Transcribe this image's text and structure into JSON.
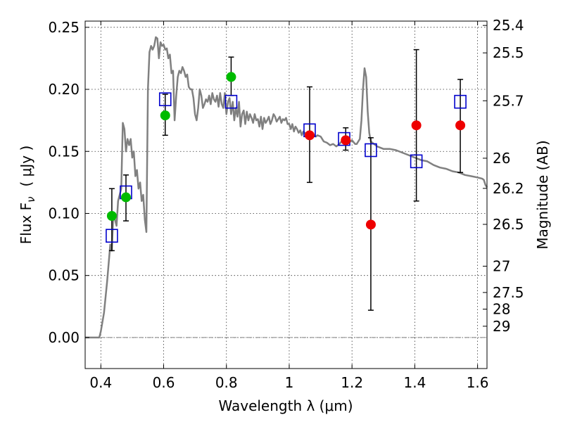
{
  "chart_data": {
    "type": "scatter",
    "xlabel": "Wavelength  λ (μm)",
    "ylabel": "Flux  F",
    "ylabel_sub": "ν",
    "ylabel_unit": "( μJy )",
    "ylabel_right": "Magnitude (AB)",
    "xlim": [
      0.35,
      1.63
    ],
    "ylim": [
      -0.025,
      0.255
    ],
    "xticks": [
      0.4,
      0.6,
      0.8,
      1.0,
      1.2,
      1.4,
      1.6
    ],
    "xtick_labels": [
      "0.4",
      "0.6",
      "0.8",
      "1",
      "1.2",
      "1.4",
      "1.6"
    ],
    "yticks": [
      0.0,
      0.05,
      0.1,
      0.15,
      0.2,
      0.25
    ],
    "ytick_labels": [
      "0.00",
      "0.05",
      "0.10",
      "0.15",
      "0.20",
      "0.25"
    ],
    "right_ticks": [
      {
        "mag": "25.4",
        "flux": 0.2515
      },
      {
        "mag": "25.5",
        "flux": 0.2294
      },
      {
        "mag": "25.7",
        "flux": 0.1908
      },
      {
        "mag": "26",
        "flux": 0.1445
      },
      {
        "mag": "26.2",
        "flux": 0.1202
      },
      {
        "mag": "26.5",
        "flux": 0.0912
      },
      {
        "mag": "27",
        "flux": 0.0575
      },
      {
        "mag": "27.5",
        "flux": 0.0363
      },
      {
        "mag": "28",
        "flux": 0.0229
      },
      {
        "mag": "29",
        "flux": 0.0091
      }
    ],
    "dotted_line": 0.0,
    "series": [
      {
        "name": "model spectrum",
        "kind": "line",
        "color": "#808080",
        "points": [
          [
            0.35,
            0.0
          ],
          [
            0.395,
            0.0
          ],
          [
            0.4,
            0.005
          ],
          [
            0.41,
            0.02
          ],
          [
            0.42,
            0.045
          ],
          [
            0.43,
            0.075
          ],
          [
            0.435,
            0.07
          ],
          [
            0.44,
            0.1
          ],
          [
            0.45,
            0.09
          ],
          [
            0.455,
            0.11
          ],
          [
            0.465,
            0.12
          ],
          [
            0.47,
            0.173
          ],
          [
            0.475,
            0.168
          ],
          [
            0.48,
            0.15
          ],
          [
            0.485,
            0.16
          ],
          [
            0.49,
            0.155
          ],
          [
            0.495,
            0.16
          ],
          [
            0.5,
            0.145
          ],
          [
            0.505,
            0.15
          ],
          [
            0.51,
            0.13
          ],
          [
            0.515,
            0.135
          ],
          [
            0.52,
            0.12
          ],
          [
            0.525,
            0.125
          ],
          [
            0.53,
            0.11
          ],
          [
            0.535,
            0.115
          ],
          [
            0.54,
            0.095
          ],
          [
            0.545,
            0.085
          ],
          [
            0.55,
            0.2
          ],
          [
            0.555,
            0.23
          ],
          [
            0.56,
            0.235
          ],
          [
            0.565,
            0.232
          ],
          [
            0.57,
            0.235
          ],
          [
            0.575,
            0.242
          ],
          [
            0.58,
            0.241
          ],
          [
            0.585,
            0.225
          ],
          [
            0.59,
            0.238
          ],
          [
            0.595,
            0.235
          ],
          [
            0.6,
            0.236
          ],
          [
            0.605,
            0.232
          ],
          [
            0.61,
            0.233
          ],
          [
            0.615,
            0.225
          ],
          [
            0.62,
            0.228
          ],
          [
            0.625,
            0.213
          ],
          [
            0.63,
            0.215
          ],
          [
            0.635,
            0.175
          ],
          [
            0.64,
            0.195
          ],
          [
            0.645,
            0.21
          ],
          [
            0.65,
            0.215
          ],
          [
            0.655,
            0.213
          ],
          [
            0.66,
            0.218
          ],
          [
            0.665,
            0.215
          ],
          [
            0.67,
            0.21
          ],
          [
            0.675,
            0.212
          ],
          [
            0.68,
            0.202
          ],
          [
            0.685,
            0.2
          ],
          [
            0.69,
            0.2
          ],
          [
            0.695,
            0.193
          ],
          [
            0.7,
            0.18
          ],
          [
            0.705,
            0.175
          ],
          [
            0.71,
            0.185
          ],
          [
            0.715,
            0.2
          ],
          [
            0.72,
            0.195
          ],
          [
            0.725,
            0.185
          ],
          [
            0.73,
            0.188
          ],
          [
            0.735,
            0.192
          ],
          [
            0.74,
            0.19
          ],
          [
            0.745,
            0.195
          ],
          [
            0.75,
            0.188
          ],
          [
            0.755,
            0.197
          ],
          [
            0.76,
            0.192
          ],
          [
            0.765,
            0.19
          ],
          [
            0.77,
            0.195
          ],
          [
            0.775,
            0.186
          ],
          [
            0.78,
            0.197
          ],
          [
            0.785,
            0.188
          ],
          [
            0.79,
            0.185
          ],
          [
            0.795,
            0.197
          ],
          [
            0.8,
            0.18
          ],
          [
            0.805,
            0.19
          ],
          [
            0.81,
            0.193
          ],
          [
            0.815,
            0.18
          ],
          [
            0.82,
            0.19
          ],
          [
            0.825,
            0.175
          ],
          [
            0.83,
            0.185
          ],
          [
            0.835,
            0.178
          ],
          [
            0.84,
            0.19
          ],
          [
            0.845,
            0.17
          ],
          [
            0.85,
            0.18
          ],
          [
            0.855,
            0.183
          ],
          [
            0.86,
            0.172
          ],
          [
            0.865,
            0.182
          ],
          [
            0.87,
            0.175
          ],
          [
            0.875,
            0.18
          ],
          [
            0.88,
            0.177
          ],
          [
            0.885,
            0.173
          ],
          [
            0.89,
            0.18
          ],
          [
            0.895,
            0.175
          ],
          [
            0.9,
            0.176
          ],
          [
            0.905,
            0.17
          ],
          [
            0.91,
            0.178
          ],
          [
            0.915,
            0.168
          ],
          [
            0.92,
            0.177
          ],
          [
            0.925,
            0.173
          ],
          [
            0.93,
            0.175
          ],
          [
            0.935,
            0.178
          ],
          [
            0.94,
            0.172
          ],
          [
            0.945,
            0.175
          ],
          [
            0.95,
            0.18
          ],
          [
            0.955,
            0.178
          ],
          [
            0.96,
            0.174
          ],
          [
            0.965,
            0.176
          ],
          [
            0.97,
            0.178
          ],
          [
            0.975,
            0.173
          ],
          [
            0.98,
            0.176
          ],
          [
            0.985,
            0.175
          ],
          [
            0.99,
            0.177
          ],
          [
            0.995,
            0.172
          ],
          [
            1.0,
            0.172
          ],
          [
            1.005,
            0.168
          ],
          [
            1.01,
            0.172
          ],
          [
            1.015,
            0.166
          ],
          [
            1.02,
            0.17
          ],
          [
            1.025,
            0.168
          ],
          [
            1.03,
            0.165
          ],
          [
            1.035,
            0.167
          ],
          [
            1.04,
            0.163
          ],
          [
            1.045,
            0.166
          ],
          [
            1.05,
            0.165
          ],
          [
            1.055,
            0.163
          ],
          [
            1.06,
            0.164
          ],
          [
            1.065,
            0.163
          ],
          [
            1.07,
            0.165
          ],
          [
            1.075,
            0.162
          ],
          [
            1.08,
            0.163
          ],
          [
            1.085,
            0.162
          ],
          [
            1.09,
            0.163
          ],
          [
            1.1,
            0.162
          ],
          [
            1.11,
            0.158
          ],
          [
            1.12,
            0.157
          ],
          [
            1.13,
            0.155
          ],
          [
            1.14,
            0.156
          ],
          [
            1.15,
            0.154
          ],
          [
            1.16,
            0.156
          ],
          [
            1.17,
            0.159
          ],
          [
            1.18,
            0.158
          ],
          [
            1.19,
            0.157
          ],
          [
            1.2,
            0.159
          ],
          [
            1.21,
            0.156
          ],
          [
            1.215,
            0.156
          ],
          [
            1.22,
            0.158
          ],
          [
            1.225,
            0.16
          ],
          [
            1.23,
            0.175
          ],
          [
            1.235,
            0.2
          ],
          [
            1.24,
            0.217
          ],
          [
            1.245,
            0.21
          ],
          [
            1.25,
            0.182
          ],
          [
            1.255,
            0.165
          ],
          [
            1.26,
            0.158
          ],
          [
            1.27,
            0.156
          ],
          [
            1.28,
            0.154
          ],
          [
            1.3,
            0.152
          ],
          [
            1.32,
            0.152
          ],
          [
            1.34,
            0.151
          ],
          [
            1.36,
            0.149
          ],
          [
            1.38,
            0.147
          ],
          [
            1.4,
            0.145
          ],
          [
            1.42,
            0.143
          ],
          [
            1.44,
            0.142
          ],
          [
            1.46,
            0.139
          ],
          [
            1.48,
            0.137
          ],
          [
            1.5,
            0.136
          ],
          [
            1.52,
            0.134
          ],
          [
            1.54,
            0.133
          ],
          [
            1.56,
            0.131
          ],
          [
            1.58,
            0.13
          ],
          [
            1.6,
            0.129
          ],
          [
            1.615,
            0.128
          ],
          [
            1.62,
            0.127
          ],
          [
            1.625,
            0.123
          ],
          [
            1.63,
            0.121
          ]
        ]
      },
      {
        "name": "model photometry",
        "kind": "open-square",
        "color": "#0000cc",
        "points": [
          [
            0.435,
            0.082
          ],
          [
            0.48,
            0.117
          ],
          [
            0.605,
            0.192
          ],
          [
            0.815,
            0.19
          ],
          [
            1.065,
            0.167
          ],
          [
            1.175,
            0.16
          ],
          [
            1.26,
            0.151
          ],
          [
            1.405,
            0.142
          ],
          [
            1.545,
            0.19
          ]
        ]
      },
      {
        "name": "optical detections",
        "kind": "filled-circle",
        "color": "#00bb00",
        "points": [
          [
            0.435,
            0.098
          ],
          [
            0.48,
            0.113
          ],
          [
            0.605,
            0.179
          ],
          [
            0.815,
            0.21
          ]
        ]
      },
      {
        "name": "near-IR detections",
        "kind": "filled-circle",
        "color": "#ee0000",
        "points": [
          [
            1.065,
            0.163
          ],
          [
            1.18,
            0.159
          ],
          [
            1.26,
            0.091
          ],
          [
            1.405,
            0.171
          ],
          [
            1.545,
            0.171
          ]
        ]
      },
      {
        "name": "error bars",
        "kind": "errorbar",
        "color": "#000000",
        "bars": [
          [
            0.435,
            0.07,
            0.12
          ],
          [
            0.48,
            0.094,
            0.131
          ],
          [
            0.605,
            0.163,
            0.196
          ],
          [
            0.815,
            0.195,
            0.226
          ],
          [
            1.065,
            0.125,
            0.202
          ],
          [
            1.18,
            0.151,
            0.169
          ],
          [
            1.26,
            0.022,
            0.161
          ],
          [
            1.405,
            0.11,
            0.232
          ],
          [
            1.545,
            0.133,
            0.208
          ]
        ]
      }
    ]
  }
}
